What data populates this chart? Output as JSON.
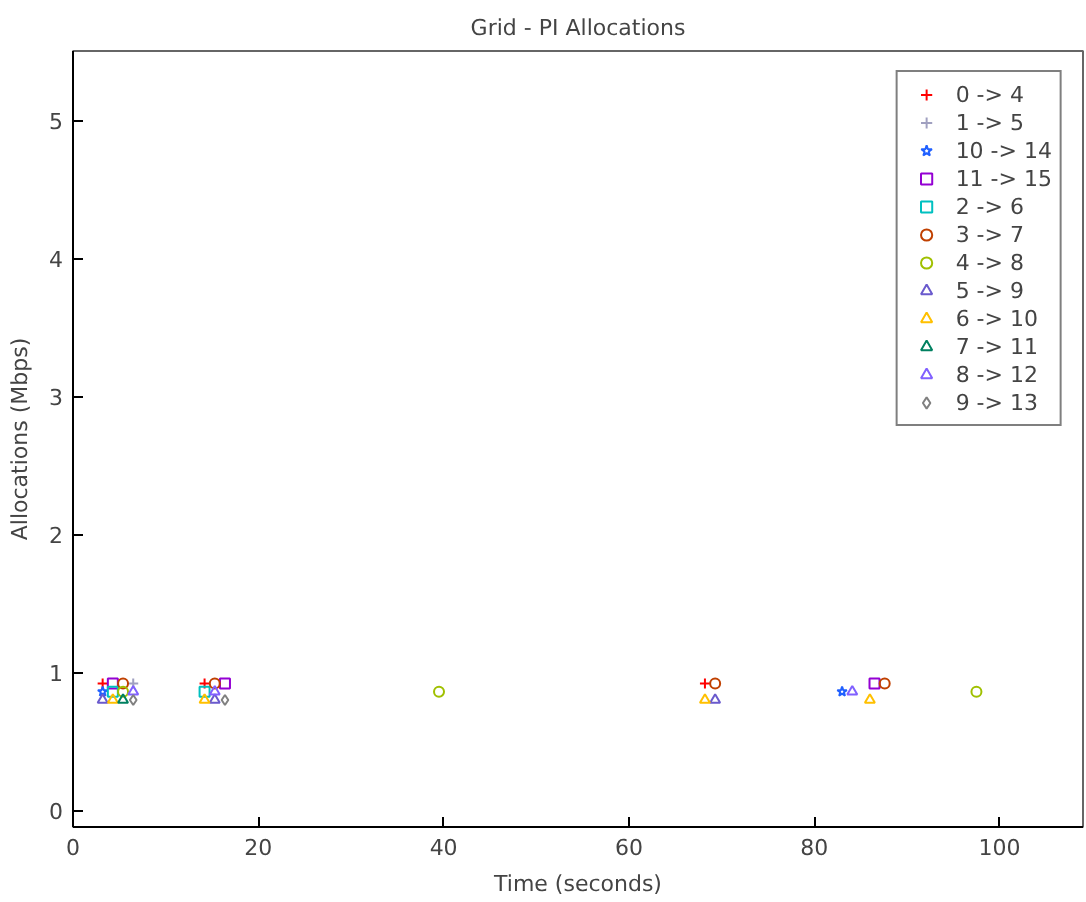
{
  "chart_data": {
    "type": "scatter",
    "title": "Grid - PI Allocations",
    "xlabel": "Time (seconds)",
    "ylabel": "Allocations (Mbps)",
    "xlim": [
      0,
      109
    ],
    "ylim": [
      -0.12,
      5.5
    ],
    "xticks": [
      0,
      20,
      40,
      60,
      80,
      100
    ],
    "yticks": [
      0,
      1,
      2,
      3,
      4,
      5
    ],
    "grid": false,
    "legend": "top right",
    "series": [
      {
        "name": "0 -> 4",
        "color": "#ff0000",
        "marker": "cross",
        "x": [
          3.2,
          14.2,
          68.2
        ],
        "values": [
          0.92,
          0.92,
          0.92
        ]
      },
      {
        "name": "1 -> 5",
        "color": "#a0a0c0",
        "marker": "cross",
        "x": [
          6.5
        ],
        "values": [
          0.92
        ]
      },
      {
        "name": "10 -> 14",
        "color": "#2060ff",
        "marker": "star",
        "x": [
          3.2,
          83.0
        ],
        "values": [
          0.86,
          0.86
        ]
      },
      {
        "name": "11 -> 15",
        "color": "#9400d3",
        "marker": "square",
        "x": [
          4.3,
          16.4,
          86.5
        ],
        "values": [
          0.92,
          0.92,
          0.92
        ]
      },
      {
        "name": "2 -> 6",
        "color": "#00c0c0",
        "marker": "square",
        "x": [
          4.3,
          14.2
        ],
        "values": [
          0.86,
          0.86
        ]
      },
      {
        "name": "3 -> 7",
        "color": "#c04000",
        "marker": "circle",
        "x": [
          5.4,
          15.3,
          69.3,
          87.6
        ],
        "values": [
          0.92,
          0.92,
          0.92,
          0.92
        ]
      },
      {
        "name": "4 -> 8",
        "color": "#a0c000",
        "marker": "circle",
        "x": [
          5.4,
          39.5,
          97.5
        ],
        "values": [
          0.86,
          0.86,
          0.86
        ]
      },
      {
        "name": "5 -> 9",
        "color": "#6a5acd",
        "marker": "triangle",
        "x": [
          3.2,
          15.3,
          69.3
        ],
        "values": [
          0.8,
          0.8,
          0.8
        ]
      },
      {
        "name": "6 -> 10",
        "color": "#ffc000",
        "marker": "triangle",
        "x": [
          4.3,
          14.2,
          68.2,
          86.0
        ],
        "values": [
          0.8,
          0.8,
          0.8,
          0.8
        ]
      },
      {
        "name": "7 -> 11",
        "color": "#008060",
        "marker": "triangle",
        "x": [
          5.4
        ],
        "values": [
          0.8
        ]
      },
      {
        "name": "8 -> 12",
        "color": "#8060ff",
        "marker": "triangle",
        "x": [
          6.5,
          15.3,
          84.1
        ],
        "values": [
          0.86,
          0.86,
          0.86
        ]
      },
      {
        "name": "9 -> 13",
        "color": "#808080",
        "marker": "diamond",
        "x": [
          6.5,
          16.4
        ],
        "values": [
          0.8,
          0.8
        ]
      }
    ]
  }
}
